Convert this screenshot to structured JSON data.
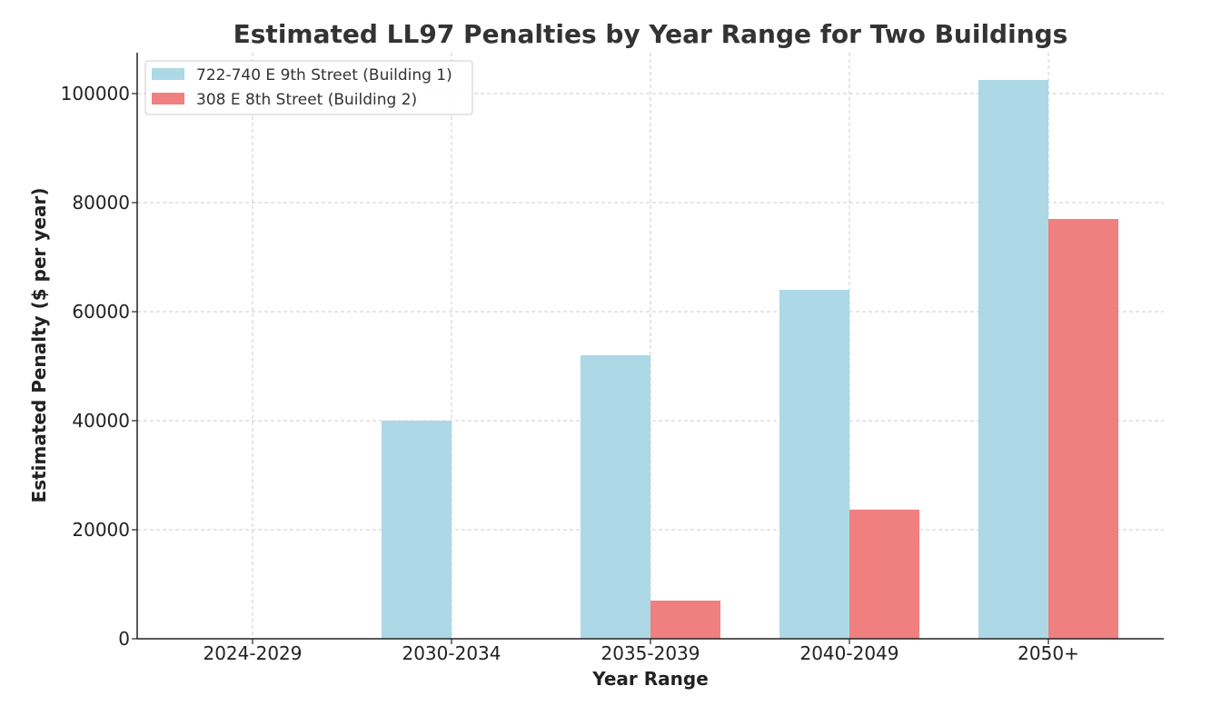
{
  "chart_data": {
    "type": "bar",
    "title": "Estimated LL97 Penalties by Year Range for Two Buildings",
    "xlabel": "Year Range",
    "ylabel": "Estimated Penalty ($ per year)",
    "categories": [
      "2024-2029",
      "2030-2034",
      "2035-2039",
      "2040-2049",
      "2050+"
    ],
    "series": [
      {
        "name": "722-740 E 9th Street (Building 1)",
        "color": "#add8e6",
        "values": [
          0,
          40000,
          52000,
          64000,
          102500
        ]
      },
      {
        "name": "308 E 8th Street (Building 2)",
        "color": "#f08080",
        "values": [
          0,
          0,
          7000,
          23700,
          77000
        ]
      }
    ],
    "ylim": [
      0,
      107500
    ],
    "yticks": [
      0,
      20000,
      40000,
      60000,
      80000,
      100000
    ],
    "grid": true,
    "legend_position": "top-left"
  }
}
